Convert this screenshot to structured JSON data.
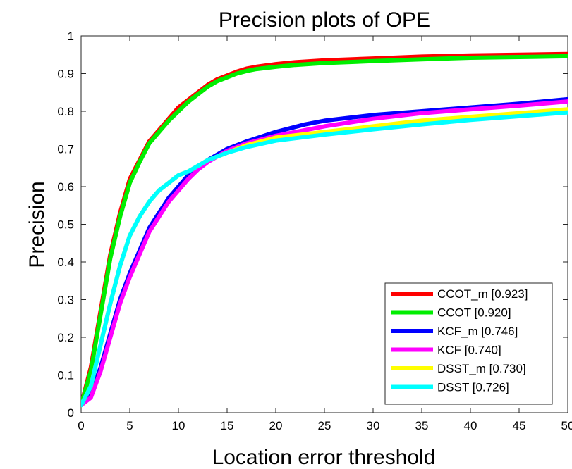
{
  "chart_data": {
    "type": "line",
    "title": "Precision plots of OPE",
    "xlabel": "Location error threshold",
    "ylabel": "Precision",
    "xlim": [
      0,
      50
    ],
    "ylim": [
      0,
      1
    ],
    "x_ticks": [
      "0",
      "5",
      "10",
      "15",
      "20",
      "25",
      "30",
      "35",
      "40",
      "45",
      "50"
    ],
    "y_ticks": [
      "0",
      "0.1",
      "0.2",
      "0.3",
      "0.4",
      "0.5",
      "0.6",
      "0.7",
      "0.8",
      "0.9",
      "1"
    ],
    "grid": false,
    "legend_position": "bottom-right",
    "series": [
      {
        "name": "CCOT_m [0.923]",
        "color": "#ff0000",
        "points": [
          [
            0,
            0.02
          ],
          [
            1,
            0.12
          ],
          [
            2,
            0.27
          ],
          [
            3,
            0.42
          ],
          [
            4,
            0.53
          ],
          [
            5,
            0.62
          ],
          [
            6,
            0.67
          ],
          [
            7,
            0.72
          ],
          [
            8,
            0.75
          ],
          [
            9,
            0.78
          ],
          [
            10,
            0.81
          ],
          [
            11,
            0.83
          ],
          [
            12,
            0.85
          ],
          [
            13,
            0.87
          ],
          [
            14,
            0.885
          ],
          [
            15,
            0.895
          ],
          [
            16,
            0.905
          ],
          [
            17,
            0.913
          ],
          [
            18,
            0.918
          ],
          [
            20,
            0.925
          ],
          [
            22,
            0.93
          ],
          [
            25,
            0.935
          ],
          [
            30,
            0.94
          ],
          [
            35,
            0.945
          ],
          [
            40,
            0.948
          ],
          [
            45,
            0.95
          ],
          [
            50,
            0.952
          ]
        ]
      },
      {
        "name": "CCOT [0.920]",
        "color": "#00ee00",
        "points": [
          [
            0,
            0.02
          ],
          [
            1,
            0.11
          ],
          [
            2,
            0.26
          ],
          [
            3,
            0.41
          ],
          [
            4,
            0.52
          ],
          [
            5,
            0.61
          ],
          [
            6,
            0.665
          ],
          [
            7,
            0.715
          ],
          [
            8,
            0.745
          ],
          [
            9,
            0.775
          ],
          [
            10,
            0.8
          ],
          [
            11,
            0.825
          ],
          [
            12,
            0.845
          ],
          [
            13,
            0.865
          ],
          [
            14,
            0.88
          ],
          [
            15,
            0.89
          ],
          [
            16,
            0.9
          ],
          [
            17,
            0.907
          ],
          [
            18,
            0.912
          ],
          [
            20,
            0.918
          ],
          [
            22,
            0.923
          ],
          [
            25,
            0.928
          ],
          [
            30,
            0.933
          ],
          [
            35,
            0.938
          ],
          [
            40,
            0.942
          ],
          [
            45,
            0.944
          ],
          [
            50,
            0.946
          ]
        ]
      },
      {
        "name": "KCF_m [0.746]",
        "color": "#0000ff",
        "points": [
          [
            0,
            0.02
          ],
          [
            1,
            0.05
          ],
          [
            2,
            0.12
          ],
          [
            3,
            0.21
          ],
          [
            4,
            0.3
          ],
          [
            5,
            0.37
          ],
          [
            6,
            0.43
          ],
          [
            7,
            0.49
          ],
          [
            8,
            0.53
          ],
          [
            9,
            0.57
          ],
          [
            10,
            0.6
          ],
          [
            11,
            0.63
          ],
          [
            12,
            0.65
          ],
          [
            13,
            0.67
          ],
          [
            15,
            0.7
          ],
          [
            17,
            0.72
          ],
          [
            20,
            0.745
          ],
          [
            23,
            0.765
          ],
          [
            25,
            0.775
          ],
          [
            30,
            0.79
          ],
          [
            35,
            0.8
          ],
          [
            40,
            0.81
          ],
          [
            45,
            0.82
          ],
          [
            50,
            0.832
          ]
        ]
      },
      {
        "name": "KCF [0.740]",
        "color": "#ff00ff",
        "points": [
          [
            0,
            0.02
          ],
          [
            1,
            0.04
          ],
          [
            2,
            0.11
          ],
          [
            3,
            0.2
          ],
          [
            4,
            0.29
          ],
          [
            5,
            0.36
          ],
          [
            6,
            0.42
          ],
          [
            7,
            0.48
          ],
          [
            8,
            0.52
          ],
          [
            9,
            0.56
          ],
          [
            10,
            0.59
          ],
          [
            11,
            0.62
          ],
          [
            12,
            0.645
          ],
          [
            13,
            0.665
          ],
          [
            15,
            0.695
          ],
          [
            17,
            0.715
          ],
          [
            20,
            0.735
          ],
          [
            23,
            0.75
          ],
          [
            25,
            0.76
          ],
          [
            30,
            0.78
          ],
          [
            35,
            0.795
          ],
          [
            40,
            0.805
          ],
          [
            45,
            0.815
          ],
          [
            50,
            0.826
          ]
        ]
      },
      {
        "name": "DSST_m [0.730]",
        "color": "#ffff00",
        "points": [
          [
            0,
            0.02
          ],
          [
            1,
            0.07
          ],
          [
            2,
            0.18
          ],
          [
            3,
            0.29
          ],
          [
            4,
            0.39
          ],
          [
            5,
            0.47
          ],
          [
            6,
            0.52
          ],
          [
            7,
            0.56
          ],
          [
            8,
            0.59
          ],
          [
            9,
            0.61
          ],
          [
            10,
            0.63
          ],
          [
            11,
            0.64
          ],
          [
            12,
            0.655
          ],
          [
            13,
            0.67
          ],
          [
            15,
            0.69
          ],
          [
            17,
            0.71
          ],
          [
            20,
            0.73
          ],
          [
            25,
            0.745
          ],
          [
            30,
            0.76
          ],
          [
            35,
            0.775
          ],
          [
            40,
            0.785
          ],
          [
            45,
            0.795
          ],
          [
            50,
            0.805
          ]
        ]
      },
      {
        "name": "DSST [0.726]",
        "color": "#00ffff",
        "points": [
          [
            0,
            0.02
          ],
          [
            1,
            0.07
          ],
          [
            2,
            0.18
          ],
          [
            3,
            0.29
          ],
          [
            4,
            0.39
          ],
          [
            5,
            0.47
          ],
          [
            6,
            0.52
          ],
          [
            7,
            0.56
          ],
          [
            8,
            0.59
          ],
          [
            9,
            0.61
          ],
          [
            10,
            0.63
          ],
          [
            11,
            0.64
          ],
          [
            12,
            0.655
          ],
          [
            13,
            0.67
          ],
          [
            15,
            0.69
          ],
          [
            17,
            0.705
          ],
          [
            20,
            0.722
          ],
          [
            25,
            0.738
          ],
          [
            30,
            0.752
          ],
          [
            35,
            0.765
          ],
          [
            40,
            0.777
          ],
          [
            45,
            0.787
          ],
          [
            50,
            0.797
          ]
        ]
      }
    ]
  }
}
